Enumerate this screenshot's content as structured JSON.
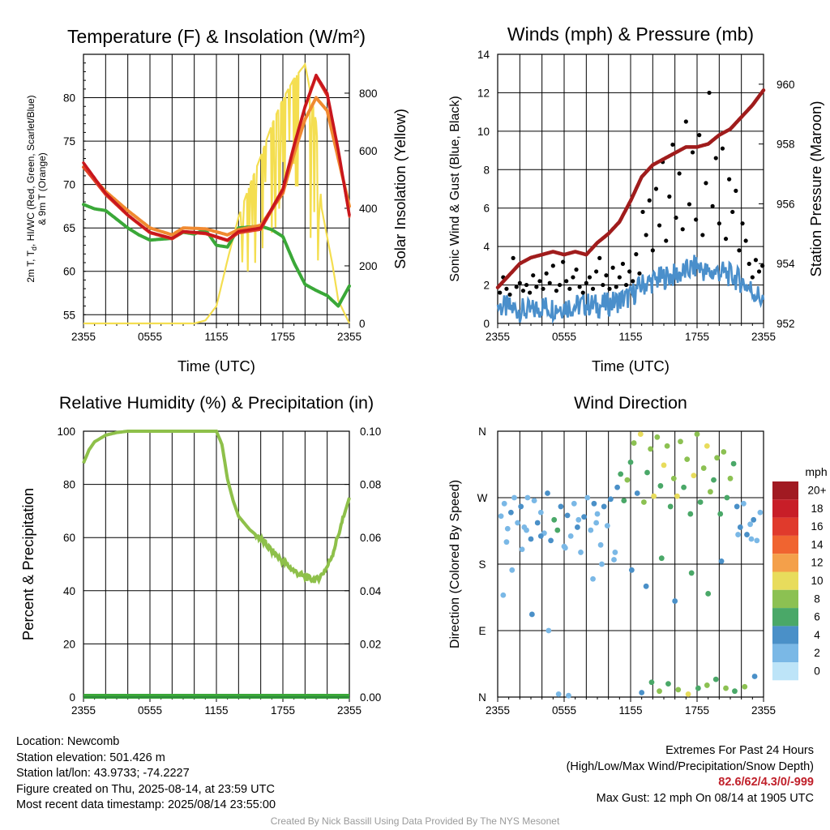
{
  "chart_data": [
    {
      "type": "line",
      "title": "Temperature (F) & Insolation (W/m²)",
      "xlabel": "Time (UTC)",
      "ylabel": "2m T, Td, HI/WC (Red, Green, Scarlet/Blue) & 9m T (Orange)",
      "ylabel_line1": "2m T, T",
      "ylabel_sub": "d",
      "ylabel_line1_rest": ", HI/WC (Red, Green, Scarlet/Blue)",
      "ylabel_line2": "& 9m T (Orange)",
      "y2label": "Solar Insolation (Yellow)",
      "x_ticks": [
        "2355",
        "0555",
        "1155",
        "1755",
        "2355"
      ],
      "ylim": [
        54,
        85
      ],
      "y_ticks": [
        55,
        60,
        65,
        70,
        75,
        80
      ],
      "y2lim": [
        0,
        935
      ],
      "y2_ticks": [
        0,
        200,
        400,
        600,
        800
      ],
      "series": [
        {
          "name": "2m T",
          "color": "#c8161d",
          "axis": "left",
          "x": [
            0,
            2,
            4,
            6,
            8,
            9,
            11,
            13,
            14,
            16,
            18,
            19,
            20,
            21,
            22,
            23,
            24
          ],
          "y": [
            72.5,
            69,
            66.5,
            64.5,
            63.8,
            64.6,
            64.4,
            63.6,
            64.6,
            65,
            69.5,
            74.5,
            79,
            82.6,
            80.5,
            74,
            66.5
          ]
        },
        {
          "name": "HI/WC",
          "color": "#e04028",
          "axis": "left",
          "x": [
            0,
            2,
            4,
            6,
            8,
            9,
            11,
            13,
            14,
            16,
            18,
            19,
            20,
            21,
            22,
            23,
            24
          ],
          "y": [
            72,
            68.8,
            66.4,
            64.4,
            63.7,
            64.5,
            64.3,
            63.5,
            64.4,
            64.8,
            69.2,
            74.2,
            78.8,
            82.4,
            80.2,
            73.8,
            66.3
          ]
        },
        {
          "name": "9m T",
          "color": "#f08a30",
          "axis": "left",
          "x": [
            0,
            2,
            4,
            6,
            8,
            9,
            11,
            13,
            14,
            16,
            18,
            19,
            20,
            21,
            22,
            23,
            24
          ],
          "y": [
            72,
            69.2,
            67,
            65,
            64.2,
            65,
            64.9,
            64.2,
            64.8,
            65.3,
            69,
            73.5,
            77.5,
            80,
            78.5,
            73,
            67.5
          ]
        },
        {
          "name": "2m Td",
          "color": "#3aa838",
          "axis": "left",
          "x": [
            0,
            1,
            2,
            3,
            4,
            5,
            6,
            8,
            9,
            10,
            11,
            12,
            13,
            14,
            16,
            17,
            18,
            19,
            20,
            21,
            22,
            23,
            24
          ],
          "y": [
            67.7,
            67.2,
            67,
            66,
            65,
            64.2,
            63.6,
            63.8,
            64.5,
            64.3,
            64.8,
            63,
            62.8,
            65,
            65.2,
            64.8,
            64,
            61,
            58.5,
            57.8,
            57.2,
            56,
            58.3
          ]
        },
        {
          "name": "Solar Insolation",
          "color": "#f4de50",
          "axis": "right",
          "x": [
            0,
            8,
            9,
            10,
            11,
            12,
            13,
            14,
            15,
            16,
            17,
            18,
            19,
            20,
            21,
            21.5,
            22,
            22.5,
            23,
            24
          ],
          "y": [
            0,
            0,
            0,
            0,
            10,
            60,
            220,
            370,
            480,
            580,
            690,
            780,
            850,
            900,
            700,
            400,
            300,
            200,
            80,
            0
          ]
        }
      ]
    },
    {
      "type": "scatter",
      "title": "Winds (mph) & Pressure (mb)",
      "xlabel": "Time (UTC)",
      "ylabel": "Sonic Wind & Gust (Blue, Black)",
      "y2label": "Station Pressure (Maroon)",
      "x_ticks": [
        "2355",
        "0555",
        "1155",
        "1755",
        "2355"
      ],
      "ylim": [
        0,
        14
      ],
      "y_ticks": [
        0,
        2,
        4,
        6,
        8,
        10,
        12,
        14
      ],
      "y2lim": [
        952,
        961
      ],
      "y2_ticks": [
        952,
        954,
        956,
        958,
        960
      ],
      "series": [
        {
          "name": "Station Pressure",
          "color": "#a01c1c",
          "kind": "line",
          "x": [
            0,
            1,
            2,
            3,
            4,
            5,
            6,
            7,
            8,
            9,
            10,
            11,
            12,
            13,
            14,
            15,
            16,
            17,
            18,
            19,
            20,
            21,
            22,
            23,
            24
          ],
          "y": [
            953.2,
            953.6,
            954,
            954.2,
            954.3,
            954.4,
            954.3,
            954.4,
            954.3,
            954.7,
            955,
            955.4,
            956.1,
            956.9,
            957.3,
            957.5,
            957.7,
            957.9,
            957.9,
            958,
            958.3,
            958.5,
            958.9,
            959.3,
            959.8
          ]
        },
        {
          "name": "Sonic Wind",
          "color": "#4a8fcb",
          "kind": "line",
          "x": [
            0,
            1,
            2,
            3,
            4,
            5,
            6,
            7,
            8,
            9,
            10,
            11,
            12,
            13,
            14,
            15,
            16,
            17,
            18,
            19,
            20,
            21,
            22,
            23,
            24
          ],
          "y": [
            0.9,
            0.8,
            0.7,
            0.6,
            0.9,
            0.8,
            0.9,
            0.9,
            1.0,
            0.9,
            1.0,
            1.2,
            1.4,
            2.0,
            2.2,
            2.4,
            2.5,
            2.7,
            3.0,
            2.6,
            2.7,
            2.5,
            2.2,
            1.7,
            1.2
          ]
        },
        {
          "name": "Gust",
          "color": "#000000",
          "kind": "points",
          "x": [
            0.2,
            0.5,
            0.8,
            1.1,
            1.4,
            1.7,
            2.0,
            2.3,
            2.6,
            2.9,
            3.2,
            3.5,
            3.8,
            4.1,
            4.4,
            4.7,
            5.0,
            5.3,
            5.6,
            5.9,
            6.2,
            6.5,
            6.8,
            7.1,
            7.4,
            7.7,
            8.0,
            8.3,
            8.6,
            8.9,
            9.2,
            9.5,
            9.8,
            10.1,
            10.4,
            10.7,
            11.0,
            11.3,
            11.6,
            11.9,
            12.2,
            12.5,
            12.8,
            13.1,
            13.4,
            13.7,
            14.0,
            14.3,
            14.6,
            14.9,
            15.2,
            15.5,
            15.8,
            16.1,
            16.4,
            16.7,
            17.0,
            17.3,
            17.6,
            17.9,
            18.2,
            18.5,
            18.8,
            19.1,
            19.4,
            19.7,
            20.0,
            20.3,
            20.6,
            20.9,
            21.2,
            21.5,
            21.8,
            22.1,
            22.4,
            22.7,
            23.0,
            23.3,
            23.6,
            23.9
          ],
          "y": [
            1.6,
            2.4,
            1.8,
            1.5,
            3.4,
            1.9,
            2.1,
            1.7,
            2.0,
            1.6,
            2.5,
            1.9,
            2.2,
            1.8,
            2.6,
            2.1,
            3.0,
            1.7,
            2.0,
            3.2,
            2.2,
            1.8,
            2.4,
            2.8,
            1.9,
            1.6,
            2.1,
            2.4,
            1.8,
            2.7,
            3.4,
            2.0,
            2.5,
            1.8,
            2.9,
            1.9,
            2.4,
            3.1,
            2.0,
            2.7,
            2.2,
            3.6,
            2.6,
            5.8,
            4.6,
            6.4,
            3.8,
            7.0,
            5.1,
            8.4,
            4.3,
            6.6,
            9.3,
            5.5,
            7.8,
            4.9,
            10.5,
            6.2,
            8.9,
            5.4,
            9.8,
            4.6,
            7.3,
            12.0,
            6.1,
            8.6,
            5.2,
            9.1,
            4.4,
            7.5,
            5.8,
            6.9,
            3.8,
            5.2,
            4.3,
            3.1,
            2.4,
            3.3,
            2.7,
            3.0
          ]
        }
      ]
    },
    {
      "type": "line",
      "title": "Relative Humidity (%) & Precipitation (in)",
      "ylabel": "Percent & Precipitation",
      "x_ticks": [
        "2355",
        "0555",
        "1155",
        "1755",
        "2355"
      ],
      "ylim": [
        0,
        100
      ],
      "y_ticks": [
        0,
        20,
        40,
        60,
        80,
        100
      ],
      "y2lim": [
        0,
        0.1
      ],
      "y2_ticks": [
        "0.00",
        "0.02",
        "0.04",
        "0.06",
        "0.08",
        "0.10"
      ],
      "series": [
        {
          "name": "Relative Humidity",
          "color": "#8ec04a",
          "x": [
            0,
            0.5,
            1,
            2,
            3,
            4,
            5,
            6,
            7,
            8,
            9,
            11,
            12,
            12.5,
            13,
            13.5,
            14,
            15,
            16,
            17,
            18,
            19,
            20,
            21,
            21.5,
            22,
            22.5,
            23,
            23.5,
            24
          ],
          "y": [
            88,
            93,
            96,
            98.5,
            99.5,
            100,
            100,
            100,
            100,
            100,
            100,
            100,
            100,
            95,
            82,
            74,
            68,
            63,
            59.5,
            55,
            51,
            47.5,
            45,
            44,
            46,
            49,
            54,
            61,
            68,
            75
          ]
        },
        {
          "name": "Precipitation",
          "color": "#2e8b3c",
          "x": [
            0,
            24
          ],
          "y": [
            0,
            0
          ]
        }
      ]
    },
    {
      "type": "scatter",
      "title": "Wind Direction",
      "ylabel": "Direction (Colored By Speed)",
      "x_ticks": [
        "2355",
        "0555",
        "1155",
        "1755",
        "2355"
      ],
      "y_ticks": [
        "N",
        "E",
        "S",
        "W",
        "N"
      ],
      "ylim": [
        0,
        360
      ],
      "legend_title": "mph",
      "legend_labels": [
        "20+",
        "18",
        "16",
        "14",
        "12",
        "10",
        "8",
        "6",
        "4",
        "2",
        "0"
      ],
      "legend_colors": [
        "#a11a22",
        "#c81e28",
        "#e03a2c",
        "#f06430",
        "#f4a04a",
        "#e8dc5c",
        "#8cc152",
        "#4aa868",
        "#4a90c8",
        "#7ab8e6",
        "#bde4f8"
      ],
      "series": [
        {
          "name": "Wind Direction",
          "kind": "points",
          "x": [
            0.3,
            0.6,
            0.9,
            1.2,
            1.5,
            1.8,
            2.1,
            2.4,
            2.7,
            3.0,
            3.3,
            3.6,
            3.9,
            4.2,
            4.5,
            4.8,
            5.1,
            5.4,
            5.7,
            6.0,
            6.3,
            6.6,
            6.9,
            7.2,
            7.5,
            7.8,
            8.1,
            8.4,
            8.7,
            9.0,
            9.3,
            9.6,
            9.9,
            10.2,
            10.5,
            10.8,
            11.1,
            11.4,
            11.7,
            12.0,
            12.3,
            12.6,
            12.9,
            13.2,
            13.5,
            13.8,
            14.1,
            14.4,
            14.7,
            15.0,
            15.3,
            15.6,
            15.9,
            16.2,
            16.5,
            16.8,
            17.1,
            17.4,
            17.7,
            18.0,
            18.3,
            18.6,
            18.9,
            19.2,
            19.5,
            19.8,
            20.1,
            20.4,
            20.7,
            21.0,
            21.3,
            21.6,
            21.9,
            22.2,
            22.5,
            22.8,
            23.1,
            23.4,
            23.7,
            0.5,
            1.3,
            2.2,
            3.1,
            4.6,
            5.5,
            6.4,
            7.3,
            8.6,
            9.4,
            13.0,
            13.9,
            14.6,
            15.4,
            16.3,
            17.2,
            18.1,
            18.9,
            19.7,
            20.6,
            21.4,
            22.3,
            23.2,
            0.8,
            2.6,
            3.9,
            6.1,
            8.9,
            10.6,
            12.1,
            13.4,
            14.8,
            16.0,
            17.5,
            19.0,
            20.2,
            21.7,
            22.9
          ],
          "y": [
            245,
            262,
            228,
            250,
            270,
            236,
            258,
            230,
            270,
            214,
            266,
            236,
            250,
            222,
            276,
            212,
            240,
            226,
            258,
            204,
            246,
            218,
            262,
            230,
            196,
            244,
            270,
            226,
            262,
            248,
            206,
            258,
            232,
            268,
            186,
            284,
            302,
            266,
            294,
            318,
            344,
            276,
            356,
            264,
            304,
            336,
            272,
            352,
            286,
            314,
            340,
            258,
            296,
            272,
            346,
            284,
            322,
            248,
            300,
            356,
            264,
            310,
            340,
            278,
            294,
            324,
            248,
            332,
            270,
            296,
            316,
            258,
            230,
            262,
            220,
            234,
            240,
            212,
            250,
            138,
            172,
            200,
            112,
            90,
            4,
            2,
            240,
            160,
            180,
            6,
            20,
            8,
            18,
            10,
            4,
            12,
            16,
            24,
            12,
            8,
            14,
            28,
            210,
            226,
            218,
            202,
            236,
            196,
            172,
            150,
            188,
            130,
            168,
            140,
            184,
            220,
            214
          ],
          "speeds": [
            1,
            1,
            1,
            2,
            1,
            1,
            2,
            1,
            1,
            2,
            1,
            2,
            1,
            1,
            2,
            2,
            3,
            3,
            2,
            1,
            2,
            1,
            1,
            2,
            1,
            2,
            1,
            1,
            2,
            1,
            1,
            2,
            1,
            2,
            1,
            2,
            3,
            3,
            4,
            3,
            4,
            2,
            5,
            4,
            3,
            4,
            5,
            4,
            3,
            5,
            4,
            3,
            4,
            5,
            4,
            3,
            4,
            3,
            5,
            4,
            3,
            4,
            5,
            4,
            3,
            4,
            3,
            4,
            3,
            4,
            3,
            2,
            2,
            1,
            2,
            1,
            2,
            1,
            1,
            1,
            1,
            1,
            2,
            1,
            1,
            1,
            1,
            1,
            1,
            2,
            3,
            4,
            3,
            4,
            5,
            3,
            4,
            3,
            4,
            3,
            4,
            2,
            1,
            1,
            2,
            1,
            1,
            1,
            2,
            2,
            3,
            2,
            3,
            3,
            2,
            1,
            1
          ]
        }
      ]
    }
  ],
  "footer": {
    "location": "Location: Newcomb",
    "elevation": "Station elevation: 501.426 m",
    "latlon": "Station lat/lon: 43.9733; -74.2227",
    "created": "Figure created on Thu, 2025-08-14, at 23:59 UTC",
    "recent": "Most recent data timestamp: 2025/08/14 23:55:00",
    "extremes_title": "Extremes For Past 24 Hours",
    "extremes_legend": "(High/Low/Max Wind/Precipitation/Snow Depth)",
    "extremes_values": "82.6/62/4.3/0/-999",
    "max_gust": "Max Gust: 12 mph On 08/14 at 1905 UTC",
    "credit": "Created By Nick Bassill Using Data Provided By The NYS Mesonet"
  }
}
